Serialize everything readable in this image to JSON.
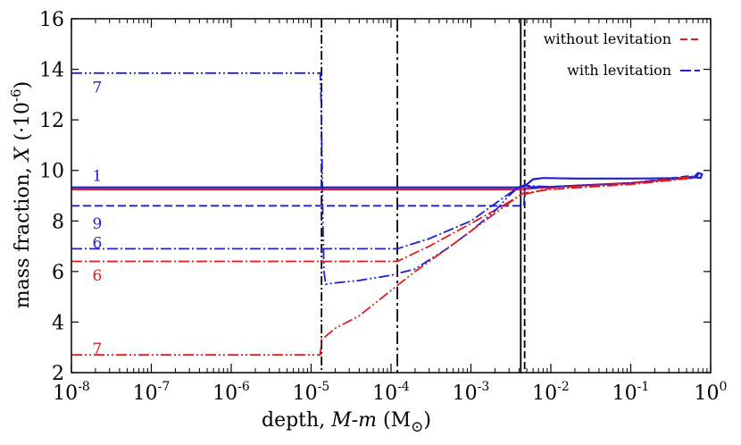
{
  "chart_data": {
    "type": "line",
    "xlabel": "depth, M-m (M⊙)",
    "ylabel": "mass fraction, X (·10⁻⁶)",
    "xscale": "log",
    "xlim": [
      1e-08,
      1
    ],
    "ylim": [
      2,
      16
    ],
    "grid": false,
    "legend_position": "top-right",
    "x_ticks": [
      {
        "value": 1e-08,
        "base": "10",
        "exp": "-8"
      },
      {
        "value": 1e-07,
        "base": "10",
        "exp": "-7"
      },
      {
        "value": 1e-06,
        "base": "10",
        "exp": "-6"
      },
      {
        "value": 1e-05,
        "base": "10",
        "exp": "-5"
      },
      {
        "value": 0.0001,
        "base": "10",
        "exp": "-4"
      },
      {
        "value": 0.001,
        "base": "10",
        "exp": "-3"
      },
      {
        "value": 0.01,
        "base": "10",
        "exp": "-2"
      },
      {
        "value": 0.1,
        "base": "10",
        "exp": "-1"
      },
      {
        "value": 1,
        "base": "10",
        "exp": "0"
      }
    ],
    "y_ticks": [
      2,
      4,
      6,
      8,
      10,
      12,
      14,
      16
    ],
    "legend": [
      {
        "label": "without levitation",
        "color": "#e41a1c",
        "dash": "8,4"
      },
      {
        "label": "with levitation",
        "color": "#1f1fd6",
        "dash": "12,4"
      }
    ],
    "vertical_lines": [
      {
        "x": 1.35e-05,
        "dash": "10,3,2,3",
        "color": "#000000"
      },
      {
        "x": 0.00012,
        "dash": "14,4,3,4",
        "color": "#000000"
      },
      {
        "x": 0.0042,
        "dash": "",
        "color": "#000000"
      },
      {
        "x": 0.0047,
        "dash": "8,4",
        "color": "#000000"
      }
    ],
    "series": [
      {
        "id": "r1",
        "color": "#e41a1c",
        "dash": "",
        "width": 2.2,
        "points": [
          [
            1e-08,
            9.25
          ],
          [
            0.0042,
            9.25
          ],
          [
            0.01,
            9.35
          ],
          [
            0.1,
            9.5
          ],
          [
            0.7,
            9.75
          ]
        ]
      },
      {
        "id": "b1",
        "color": "#1f1fd6",
        "dash": "",
        "width": 2.2,
        "points": [
          [
            1e-08,
            9.33
          ],
          [
            0.0041,
            9.33
          ],
          [
            0.0044,
            9.35
          ],
          [
            0.005,
            9.45
          ],
          [
            0.006,
            9.65
          ],
          [
            0.008,
            9.7
          ],
          [
            0.02,
            9.68
          ],
          [
            0.1,
            9.68
          ],
          [
            0.6,
            9.7
          ],
          [
            0.7,
            9.9
          ],
          [
            0.78,
            9.85
          ],
          [
            0.75,
            9.7
          ],
          [
            0.65,
            9.72
          ],
          [
            0.7,
            9.85
          ]
        ]
      },
      {
        "id": "b9",
        "color": "#1f1fd6",
        "dash": "9,4",
        "width": 1.8,
        "points": [
          [
            1e-08,
            8.6
          ],
          [
            0.0046,
            8.6
          ],
          [
            0.0047,
            9.3
          ],
          [
            0.01,
            9.35
          ],
          [
            0.1,
            9.5
          ],
          [
            0.6,
            9.8
          ]
        ]
      },
      {
        "id": "b6",
        "color": "#1f1fd6",
        "dash": "12,3,2,3",
        "width": 1.8,
        "points": [
          [
            1e-08,
            6.9
          ],
          [
            0.00012,
            6.9
          ],
          [
            0.0003,
            7.3
          ],
          [
            0.001,
            8.0
          ],
          [
            0.0025,
            8.9
          ],
          [
            0.0038,
            9.3
          ],
          [
            0.0045,
            9.4
          ],
          [
            0.01,
            9.35
          ],
          [
            0.1,
            9.5
          ],
          [
            0.6,
            9.75
          ]
        ]
      },
      {
        "id": "r6",
        "color": "#e41a1c",
        "dash": "12,3,2,3",
        "width": 1.8,
        "points": [
          [
            1e-08,
            6.4
          ],
          [
            0.00012,
            6.4
          ],
          [
            0.0003,
            7.0
          ],
          [
            0.001,
            7.9
          ],
          [
            0.0025,
            8.6
          ],
          [
            0.0045,
            9.1
          ],
          [
            0.01,
            9.25
          ],
          [
            0.1,
            9.45
          ],
          [
            0.6,
            9.7
          ]
        ]
      },
      {
        "id": "b7",
        "color": "#1f1fd6",
        "dash": "12,3,2,3,2,3",
        "width": 1.8,
        "points": [
          [
            1e-08,
            13.85
          ],
          [
            1.3e-05,
            13.85
          ],
          [
            1.33e-05,
            12.8
          ],
          [
            1.37e-05,
            10.5
          ],
          [
            1.4e-05,
            8.0
          ],
          [
            1.45e-05,
            6.0
          ],
          [
            1.52e-05,
            5.5
          ],
          [
            2e-05,
            5.55
          ],
          [
            4e-05,
            5.65
          ],
          [
            0.0001,
            5.85
          ],
          [
            0.0002,
            6.1
          ],
          [
            0.0005,
            6.9
          ],
          [
            0.001,
            7.6
          ],
          [
            0.002,
            8.4
          ],
          [
            0.003,
            9.0
          ],
          [
            0.004,
            9.35
          ],
          [
            0.006,
            9.35
          ],
          [
            0.01,
            9.35
          ],
          [
            0.1,
            9.5
          ],
          [
            0.6,
            9.75
          ]
        ]
      },
      {
        "id": "r7",
        "color": "#e41a1c",
        "dash": "12,3,2,3,2,3",
        "width": 1.8,
        "points": [
          [
            1e-08,
            2.7
          ],
          [
            1.3e-05,
            2.7
          ],
          [
            1.35e-05,
            3.3
          ],
          [
            2e-05,
            3.75
          ],
          [
            4e-05,
            4.25
          ],
          [
            0.0001,
            5.25
          ],
          [
            0.0002,
            6.0
          ],
          [
            0.0005,
            6.9
          ],
          [
            0.001,
            7.6
          ],
          [
            0.002,
            8.3
          ],
          [
            0.004,
            9.0
          ],
          [
            0.01,
            9.3
          ],
          [
            0.1,
            9.5
          ],
          [
            0.6,
            9.75
          ]
        ]
      }
    ],
    "annotations": [
      {
        "text": "7",
        "x": 2e-08,
        "y": 13.3,
        "color": "#1f1fd6"
      },
      {
        "text": "1",
        "x": 2e-08,
        "y": 9.8,
        "color": "#1f1fd6"
      },
      {
        "text": "9",
        "x": 2e-08,
        "y": 7.9,
        "color": "#1f1fd6"
      },
      {
        "text": "6",
        "x": 2e-08,
        "y": 7.15,
        "color": "#1f1fd6"
      },
      {
        "text": "6",
        "x": 2e-08,
        "y": 5.85,
        "color": "#e41a1c"
      },
      {
        "text": "7",
        "x": 2e-08,
        "y": 2.95,
        "color": "#e41a1c"
      }
    ]
  }
}
